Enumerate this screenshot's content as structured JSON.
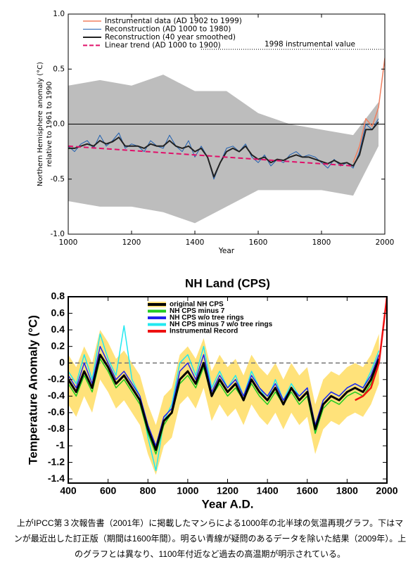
{
  "chart_data": [
    {
      "type": "line",
      "xlabel": "Year",
      "ylabel": [
        "Northern Hemisphere anomaly (°C)",
        "relative to 1961 to 1990"
      ],
      "xlim": [
        1000,
        2000
      ],
      "ylim": [
        -1,
        1
      ],
      "xticks": [
        1000,
        1200,
        1400,
        1600,
        1800,
        2000
      ],
      "yticks": [
        {
          "value": -1,
          "label": "-1.0"
        },
        -0.5,
        {
          "value": 0,
          "label": "0.0"
        },
        0.5,
        {
          "value": 1,
          "label": "1.0"
        }
      ],
      "zero_line": "solid",
      "reference_line": {
        "value": 0.68,
        "label": "1998 instrumental value"
      },
      "band": {
        "color": "#bdbdbd",
        "x": [
          1000,
          1100,
          1200,
          1300,
          1400,
          1500,
          1600,
          1700,
          1800,
          1900,
          1980
        ],
        "upper": [
          0.35,
          0.4,
          0.35,
          0.45,
          0.3,
          0.3,
          0.1,
          0.0,
          -0.05,
          -0.1,
          0.2
        ],
        "lower": [
          -0.7,
          -0.75,
          -0.75,
          -0.8,
          -0.9,
          -0.75,
          -0.6,
          -0.6,
          -0.6,
          -0.65,
          -0.2
        ]
      },
      "x": [
        1000,
        1020,
        1040,
        1060,
        1080,
        1100,
        1120,
        1140,
        1160,
        1180,
        1200,
        1220,
        1240,
        1260,
        1280,
        1300,
        1320,
        1340,
        1360,
        1380,
        1400,
        1420,
        1440,
        1460,
        1480,
        1500,
        1520,
        1540,
        1560,
        1580,
        1600,
        1620,
        1640,
        1660,
        1680,
        1700,
        1720,
        1740,
        1760,
        1780,
        1800,
        1820,
        1840,
        1860,
        1880,
        1900,
        1920,
        1940,
        1960,
        1980,
        2000
      ],
      "series": [
        {
          "name": "Instrumental data (AD 1902 to 1999)",
          "color": "#f08060",
          "width": 1.5,
          "values": [
            null,
            null,
            null,
            null,
            null,
            null,
            null,
            null,
            null,
            null,
            null,
            null,
            null,
            null,
            null,
            null,
            null,
            null,
            null,
            null,
            null,
            null,
            null,
            null,
            null,
            null,
            null,
            null,
            null,
            null,
            null,
            null,
            null,
            null,
            null,
            null,
            null,
            null,
            null,
            null,
            null,
            null,
            null,
            null,
            null,
            -0.35,
            -0.2,
            0.05,
            -0.02,
            0.15,
            0.6
          ]
        },
        {
          "name": "Reconstruction (AD 1000 to 1980)",
          "color": "#2060b0",
          "width": 1,
          "values": [
            -0.2,
            -0.25,
            -0.18,
            -0.15,
            -0.22,
            -0.1,
            -0.2,
            -0.15,
            -0.08,
            -0.22,
            -0.18,
            -0.2,
            -0.25,
            -0.15,
            -0.2,
            -0.22,
            -0.1,
            -0.2,
            -0.25,
            -0.15,
            -0.3,
            -0.2,
            -0.3,
            -0.5,
            -0.35,
            -0.22,
            -0.2,
            -0.25,
            -0.18,
            -0.3,
            -0.35,
            -0.28,
            -0.38,
            -0.32,
            -0.35,
            -0.28,
            -0.25,
            -0.3,
            -0.28,
            -0.3,
            -0.35,
            -0.4,
            -0.32,
            -0.38,
            -0.35,
            -0.4,
            -0.25,
            0.0,
            -0.05,
            0.05,
            null
          ]
        },
        {
          "name": "Reconstruction (40 year smoothed)",
          "color": "#222222",
          "width": 2,
          "values": [
            -0.22,
            -0.22,
            -0.2,
            -0.18,
            -0.2,
            -0.15,
            -0.18,
            -0.16,
            -0.12,
            -0.2,
            -0.2,
            -0.2,
            -0.22,
            -0.18,
            -0.2,
            -0.2,
            -0.15,
            -0.2,
            -0.22,
            -0.2,
            -0.25,
            -0.22,
            -0.3,
            -0.48,
            -0.35,
            -0.25,
            -0.22,
            -0.25,
            -0.2,
            -0.28,
            -0.32,
            -0.3,
            -0.35,
            -0.32,
            -0.33,
            -0.3,
            -0.28,
            -0.3,
            -0.3,
            -0.32,
            -0.34,
            -0.36,
            -0.33,
            -0.36,
            -0.35,
            -0.38,
            -0.28,
            -0.05,
            -0.05,
            0.02,
            null
          ]
        },
        {
          "name": "Linear trend (AD 1000 to 1900)",
          "color": "#e0106a",
          "width": 2,
          "dashed": true,
          "x": [
            1000,
            1900
          ],
          "values": [
            -0.2,
            -0.38
          ]
        }
      ]
    },
    {
      "type": "line",
      "title": "NH Land (CPS)",
      "xlabel": "Year A.D.",
      "ylabel": [
        "Temperature Anomaly (°C)"
      ],
      "xlim": [
        400,
        2000
      ],
      "ylim": [
        -1.45,
        0.8
      ],
      "xticks": [
        400,
        600,
        800,
        1000,
        1200,
        1400,
        1600,
        1800,
        2000
      ],
      "yticks": [
        0.8,
        0.6,
        0.4,
        0.2,
        0,
        -0.2,
        -0.4,
        -0.6,
        -0.8,
        -1,
        -1.2,
        -1.4
      ],
      "zero_line": "dashed",
      "band": {
        "color": "#ffe27a",
        "upper": [
          0.1,
          -0.05,
          0.2,
          0,
          0.4,
          0.25,
          0.05,
          0.15,
          0,
          -0.15,
          -0.5,
          -0.75,
          -0.4,
          -0.3,
          0.1,
          0.2,
          0.05,
          0.3,
          -0.1,
          0.1,
          -0.05,
          0.05,
          -0.15,
          0.1,
          -0.05,
          -0.15,
          0,
          -0.2,
          0,
          -0.15,
          -0.05,
          -0.5,
          -0.2,
          -0.1,
          -0.15,
          -0.05,
          0,
          -0.05,
          0.1,
          0.35,
          null
        ],
        "lower": [
          -0.5,
          -0.65,
          -0.4,
          -0.6,
          -0.2,
          -0.35,
          -0.55,
          -0.45,
          -0.6,
          -0.75,
          -1.1,
          -1.35,
          -1.0,
          -0.9,
          -0.5,
          -0.4,
          -0.55,
          -0.3,
          -0.7,
          -0.5,
          -0.65,
          -0.55,
          -0.75,
          -0.5,
          -0.65,
          -0.75,
          -0.6,
          -0.8,
          -0.6,
          -0.75,
          -0.65,
          -1.1,
          -0.8,
          -0.7,
          -0.75,
          -0.65,
          -0.6,
          -0.65,
          -0.5,
          -0.25,
          null
        ]
      },
      "x": [
        400,
        440,
        480,
        520,
        560,
        600,
        640,
        680,
        720,
        760,
        800,
        840,
        880,
        920,
        960,
        1000,
        1040,
        1080,
        1120,
        1160,
        1200,
        1240,
        1280,
        1320,
        1360,
        1400,
        1440,
        1480,
        1520,
        1560,
        1600,
        1640,
        1680,
        1720,
        1760,
        1800,
        1840,
        1880,
        1920,
        1960,
        2000
      ],
      "series": [
        {
          "name": "NH CPS minus 7 w/o tree rings",
          "color": "#22e8f0",
          "width": 1.5,
          "legend_order": 3,
          "values": [
            -0.1,
            -0.25,
            0.1,
            -0.2,
            0.35,
            0.05,
            -0.15,
            0.45,
            -0.2,
            -0.4,
            -0.9,
            -1.3,
            -0.7,
            -0.5,
            0.0,
            0.1,
            -0.15,
            0.2,
            -0.3,
            -0.1,
            -0.3,
            -0.15,
            -0.4,
            -0.1,
            -0.3,
            -0.45,
            -0.2,
            -0.45,
            -0.25,
            -0.4,
            -0.3,
            -0.85,
            -0.45,
            -0.35,
            -0.4,
            -0.3,
            -0.25,
            -0.3,
            -0.1,
            0.15,
            null
          ]
        },
        {
          "name": "NH CPS minus 7",
          "color": "#22cc22",
          "width": 1.5,
          "legend_order": 1,
          "values": [
            -0.25,
            -0.4,
            -0.15,
            -0.35,
            0.05,
            -0.1,
            -0.3,
            -0.2,
            -0.35,
            -0.5,
            -0.85,
            -1.1,
            -0.75,
            -0.6,
            -0.25,
            -0.15,
            -0.3,
            -0.05,
            -0.4,
            -0.25,
            -0.4,
            -0.3,
            -0.45,
            -0.25,
            -0.4,
            -0.5,
            -0.35,
            -0.5,
            -0.35,
            -0.5,
            -0.4,
            -0.85,
            -0.55,
            -0.45,
            -0.5,
            -0.4,
            -0.35,
            -0.4,
            -0.25,
            0.0,
            null
          ]
        },
        {
          "name": "NH CPS w/o tree rings",
          "color": "#2222ee",
          "width": 1.5,
          "legend_order": 2,
          "values": [
            -0.15,
            -0.3,
            0.0,
            -0.25,
            0.2,
            0.0,
            -0.2,
            -0.1,
            -0.25,
            -0.4,
            -0.75,
            -1.0,
            -0.65,
            -0.55,
            -0.1,
            0.0,
            -0.2,
            0.1,
            -0.35,
            -0.15,
            -0.3,
            -0.2,
            -0.4,
            -0.15,
            -0.3,
            -0.4,
            -0.25,
            -0.45,
            -0.3,
            -0.4,
            -0.3,
            -0.75,
            -0.45,
            -0.35,
            -0.4,
            -0.3,
            -0.25,
            -0.3,
            -0.15,
            0.1,
            null
          ]
        },
        {
          "name": "original NH CPS",
          "color": "#000000",
          "width": 3,
          "legend_order": 0,
          "values": [
            -0.2,
            -0.35,
            -0.1,
            -0.3,
            0.1,
            -0.05,
            -0.25,
            -0.15,
            -0.3,
            -0.45,
            -0.8,
            -1.05,
            -0.7,
            -0.6,
            -0.2,
            -0.1,
            -0.25,
            0.0,
            -0.4,
            -0.2,
            -0.35,
            -0.25,
            -0.45,
            -0.2,
            -0.35,
            -0.45,
            -0.3,
            -0.5,
            -0.3,
            -0.45,
            -0.35,
            -0.8,
            -0.5,
            -0.4,
            -0.45,
            -0.35,
            -0.3,
            -0.35,
            -0.2,
            0.05,
            null
          ]
        },
        {
          "name": "Instrumental Record",
          "color": "#ee1111",
          "width": 2.5,
          "legend_order": 4,
          "values": [
            null,
            null,
            null,
            null,
            null,
            null,
            null,
            null,
            null,
            null,
            null,
            null,
            null,
            null,
            null,
            null,
            null,
            null,
            null,
            null,
            null,
            null,
            null,
            null,
            null,
            null,
            null,
            null,
            null,
            null,
            null,
            null,
            null,
            null,
            null,
            null,
            -0.45,
            -0.4,
            -0.3,
            0.0,
            0.8
          ]
        }
      ]
    }
  ],
  "caption": "上がIPCC第３次報告書（2001年）に掲載したマンらによる1000年の北半球の気温再現グラフ。下はマンが最近出した訂正版（期間は1600年間）。明るい青線が疑問のあるデータを除いた結果（2009年）。上のグラフとは異なり、1100年付近など過去の高温期が明示されている。"
}
